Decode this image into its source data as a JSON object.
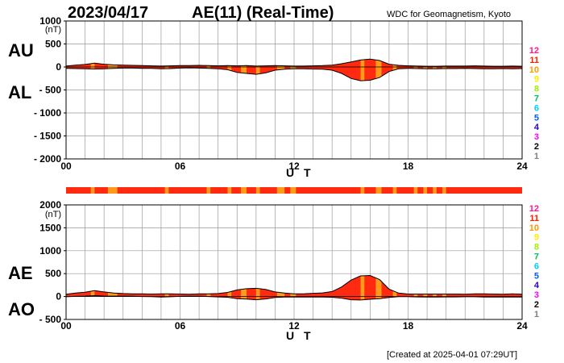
{
  "header": {
    "date": "2023/04/17",
    "title": "AE(11) (Real-Time)",
    "org": "WDC for Geomagnetism, Kyoto"
  },
  "footer": "[Created at 2025-04-01 07:29UT]",
  "colors": {
    "fill_primary": "#ff2a10",
    "fill_secondary": "#ff9a1a",
    "grid": "#9a9a9a",
    "level_colors": [
      "#c8c8c8",
      "#808080",
      "#000000",
      "#ff00ff",
      "#3000c0",
      "#0060ff",
      "#00d0ff",
      "#00c060",
      "#a0f000",
      "#ffee00",
      "#ff9a00",
      "#ff2000",
      "#ff1a8a"
    ]
  },
  "levels": [
    "1",
    "2",
    "3",
    "4",
    "5",
    "6",
    "7",
    "8",
    "9",
    "10",
    "11",
    "12"
  ],
  "chart_data": [
    {
      "type": "area",
      "panel": "AU/AL",
      "left_labels": [
        "AU",
        "AL"
      ],
      "y_unit": "(nT)",
      "ylim": [
        -2000,
        1000
      ],
      "yticks": [
        "1000",
        "500",
        "0",
        "- 500",
        "- 1000",
        "- 1500",
        "- 2000"
      ],
      "xlim": [
        0,
        24
      ],
      "xticks": [
        "00",
        "06",
        "12",
        "18",
        "24"
      ],
      "xlabel": "U T",
      "x": [
        0,
        0.5,
        1,
        1.5,
        2,
        2.5,
        3,
        3.5,
        4,
        4.5,
        5,
        5.5,
        6,
        6.5,
        7,
        7.5,
        8,
        8.5,
        9,
        9.5,
        10,
        10.5,
        11,
        11.5,
        12,
        12.5,
        13,
        13.5,
        14,
        14.5,
        15,
        15.5,
        16,
        16.5,
        17,
        17.5,
        18,
        18.5,
        19,
        19.5,
        20,
        20.5,
        21,
        21.5,
        22,
        22.5,
        23,
        23.5,
        24
      ],
      "series": [
        {
          "name": "AU",
          "values": [
            20,
            40,
            55,
            85,
            60,
            45,
            40,
            35,
            30,
            25,
            20,
            25,
            30,
            30,
            35,
            30,
            25,
            30,
            25,
            30,
            20,
            25,
            30,
            25,
            20,
            20,
            25,
            30,
            40,
            70,
            110,
            150,
            170,
            140,
            60,
            35,
            25,
            20,
            15,
            15,
            20,
            20,
            20,
            25,
            20,
            15,
            15,
            20,
            15
          ]
        },
        {
          "name": "AL",
          "values": [
            -30,
            -35,
            -40,
            -45,
            -40,
            -30,
            -25,
            -25,
            -30,
            -30,
            -40,
            -35,
            -25,
            -20,
            -25,
            -30,
            -40,
            -60,
            -120,
            -140,
            -160,
            -130,
            -70,
            -50,
            -40,
            -40,
            -45,
            -50,
            -70,
            -140,
            -250,
            -300,
            -290,
            -230,
            -100,
            -40,
            -30,
            -35,
            -40,
            -40,
            -35,
            -35,
            -30,
            -35,
            -40,
            -40,
            -35,
            -40,
            -35
          ]
        }
      ]
    },
    {
      "type": "area",
      "panel": "AE/AO",
      "left_labels": [
        "AE",
        "AO"
      ],
      "y_unit": "(nT)",
      "ylim": [
        -500,
        2000
      ],
      "yticks": [
        "2000",
        "1500",
        "1000",
        "500",
        "0",
        "- 500"
      ],
      "xlim": [
        0,
        24
      ],
      "xticks": [
        "00",
        "06",
        "12",
        "18",
        "24"
      ],
      "xlabel": "U T",
      "x": [
        0,
        0.5,
        1,
        1.5,
        2,
        2.5,
        3,
        3.5,
        4,
        4.5,
        5,
        5.5,
        6,
        6.5,
        7,
        7.5,
        8,
        8.5,
        9,
        9.5,
        10,
        10.5,
        11,
        11.5,
        12,
        12.5,
        13,
        13.5,
        14,
        14.5,
        15,
        15.5,
        16,
        16.5,
        17,
        17.5,
        18,
        18.5,
        19,
        19.5,
        20,
        20.5,
        21,
        21.5,
        22,
        22.5,
        23,
        23.5,
        24
      ],
      "series": [
        {
          "name": "AE",
          "values": [
            50,
            75,
            95,
            130,
            100,
            75,
            65,
            60,
            60,
            55,
            60,
            60,
            55,
            50,
            60,
            60,
            65,
            90,
            145,
            170,
            180,
            155,
            100,
            75,
            60,
            60,
            70,
            80,
            110,
            210,
            360,
            450,
            460,
            370,
            160,
            75,
            55,
            55,
            55,
            55,
            55,
            55,
            50,
            60,
            60,
            55,
            50,
            60,
            50
          ]
        },
        {
          "name": "AO",
          "values": [
            -5,
            3,
            8,
            20,
            10,
            8,
            8,
            5,
            0,
            -3,
            -10,
            -5,
            3,
            5,
            5,
            0,
            -8,
            -15,
            -48,
            -55,
            -70,
            -52,
            -20,
            -12,
            -10,
            -10,
            -10,
            -10,
            -15,
            -35,
            -70,
            -75,
            -60,
            -45,
            -20,
            -3,
            -3,
            -8,
            -13,
            -13,
            -8,
            -8,
            -5,
            -5,
            -10,
            -13,
            -10,
            -10,
            -10
          ]
        }
      ]
    }
  ]
}
